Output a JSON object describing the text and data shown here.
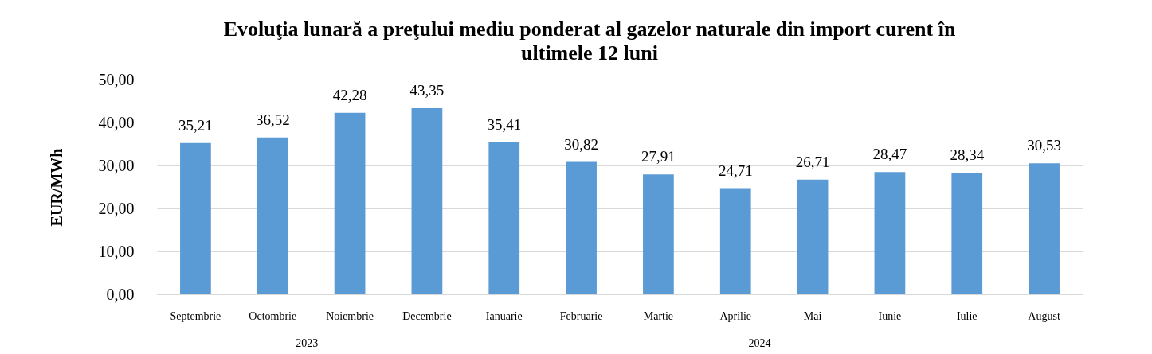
{
  "chart_data": {
    "type": "bar",
    "title": "Evoluţia lunară a preţului mediu ponderat al gazelor naturale din import curent în ultimele 12 luni",
    "ylabel": "EUR/MWh",
    "categories": [
      "Septembrie",
      "Octombrie",
      "Noiembrie",
      "Decembrie",
      "Ianuarie",
      "Februarie",
      "Martie",
      "Aprilie",
      "Mai",
      "Iunie",
      "Iulie",
      "August"
    ],
    "values": [
      35.21,
      36.52,
      42.28,
      43.35,
      35.41,
      30.82,
      27.91,
      24.71,
      26.71,
      28.47,
      28.34,
      30.53
    ],
    "value_labels": [
      "35,21",
      "36,52",
      "42,28",
      "43,35",
      "35,41",
      "30,82",
      "27,91",
      "24,71",
      "26,71",
      "28,47",
      "28,34",
      "30,53"
    ],
    "color": "#5b9bd5",
    "ylim": [
      0,
      50
    ],
    "yticks": [
      {
        "value": 0,
        "label": "0,00"
      },
      {
        "value": 10,
        "label": "10,00"
      },
      {
        "value": 20,
        "label": "20,00"
      },
      {
        "value": 30,
        "label": "30,00"
      },
      {
        "value": 40,
        "label": "40,00"
      },
      {
        "value": 50,
        "label": "50,00"
      }
    ],
    "grid": "y",
    "annotations": [
      "2023",
      "2024"
    ]
  }
}
